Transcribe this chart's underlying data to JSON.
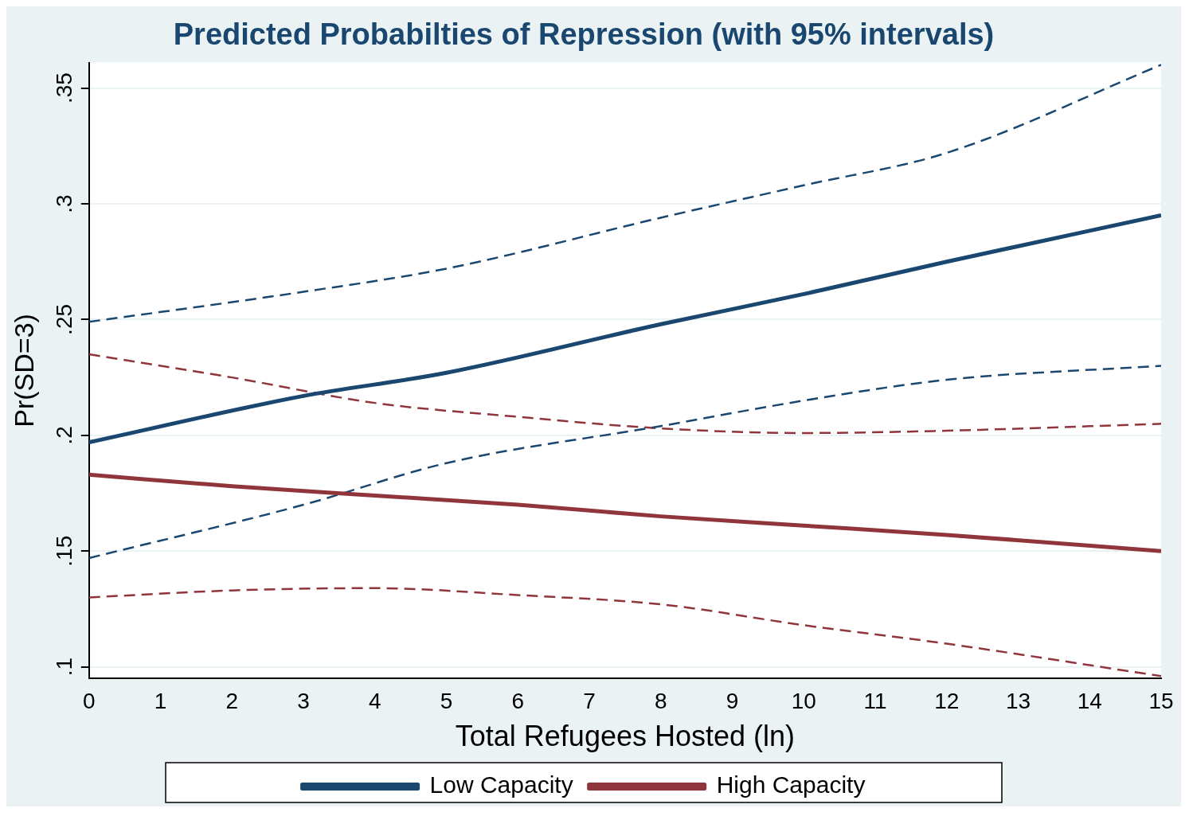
{
  "chart_data": {
    "type": "line",
    "title": "Predicted Probabilties of Repression (with 95% intervals)",
    "xlabel": "Total Refugees Hosted (ln)",
    "ylabel": "Pr(SD=3)",
    "xlim": [
      0,
      15
    ],
    "xticks": [
      0,
      1,
      2,
      3,
      4,
      5,
      6,
      7,
      8,
      9,
      10,
      11,
      12,
      13,
      14,
      15
    ],
    "ylim": [
      0.095,
      0.361
    ],
    "yticks": [
      {
        "value": 0.1,
        "label": ".1"
      },
      {
        "value": 0.15,
        "label": ".15"
      },
      {
        "value": 0.2,
        "label": ".2"
      },
      {
        "value": 0.25,
        "label": ".25"
      },
      {
        "value": 0.3,
        "label": ".3"
      },
      {
        "value": 0.35,
        "label": ".35"
      }
    ],
    "grid": "y",
    "legend": "bottom",
    "series": [
      {
        "name": "Low Capacity",
        "color": "#1a476f",
        "line_style": "solid",
        "x": [
          0,
          3,
          5,
          8,
          10,
          12,
          15
        ],
        "values": [
          0.197,
          0.217,
          0.227,
          0.248,
          0.261,
          0.275,
          0.295
        ]
      },
      {
        "name": "High Capacity",
        "color": "#90353b",
        "line_style": "solid",
        "x": [
          0,
          2,
          4,
          6,
          8,
          10,
          12,
          15
        ],
        "values": [
          0.183,
          0.178,
          0.174,
          0.17,
          0.165,
          0.161,
          0.157,
          0.15
        ]
      },
      {
        "color": "#1a476f",
        "line_style": "dashed",
        "x": [
          0,
          3,
          5,
          8,
          10,
          12,
          15
        ],
        "values": [
          0.147,
          0.17,
          0.188,
          0.204,
          0.215,
          0.224,
          0.23
        ]
      },
      {
        "color": "#1a476f",
        "line_style": "dashed",
        "x": [
          0,
          3,
          5,
          8,
          10,
          12,
          15
        ],
        "values": [
          0.249,
          0.262,
          0.272,
          0.294,
          0.308,
          0.322,
          0.36
        ]
      },
      {
        "color": "#90353b",
        "line_style": "dashed",
        "x": [
          0,
          2,
          4,
          6,
          8,
          10,
          12,
          15
        ],
        "values": [
          0.13,
          0.133,
          0.134,
          0.131,
          0.127,
          0.118,
          0.11,
          0.096
        ]
      },
      {
        "color": "#90353b",
        "line_style": "dashed",
        "x": [
          0,
          2,
          4,
          6,
          8,
          10,
          12,
          15
        ],
        "values": [
          0.235,
          0.225,
          0.214,
          0.208,
          0.203,
          0.201,
          0.202,
          0.205
        ]
      }
    ]
  }
}
